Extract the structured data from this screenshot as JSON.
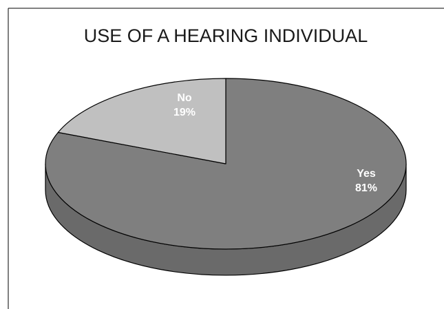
{
  "chart_data": {
    "type": "pie",
    "title": "USE OF A HEARING INDIVIDUAL",
    "style": "3d",
    "categories": [
      "Yes",
      "No"
    ],
    "values": [
      81,
      19
    ],
    "value_labels": [
      "81%",
      "19%"
    ],
    "colors": {
      "Yes": "#7f7f7f",
      "Yes_side": "#6a6a6a",
      "No": "#c0c0c0",
      "outline": "#000000"
    }
  }
}
